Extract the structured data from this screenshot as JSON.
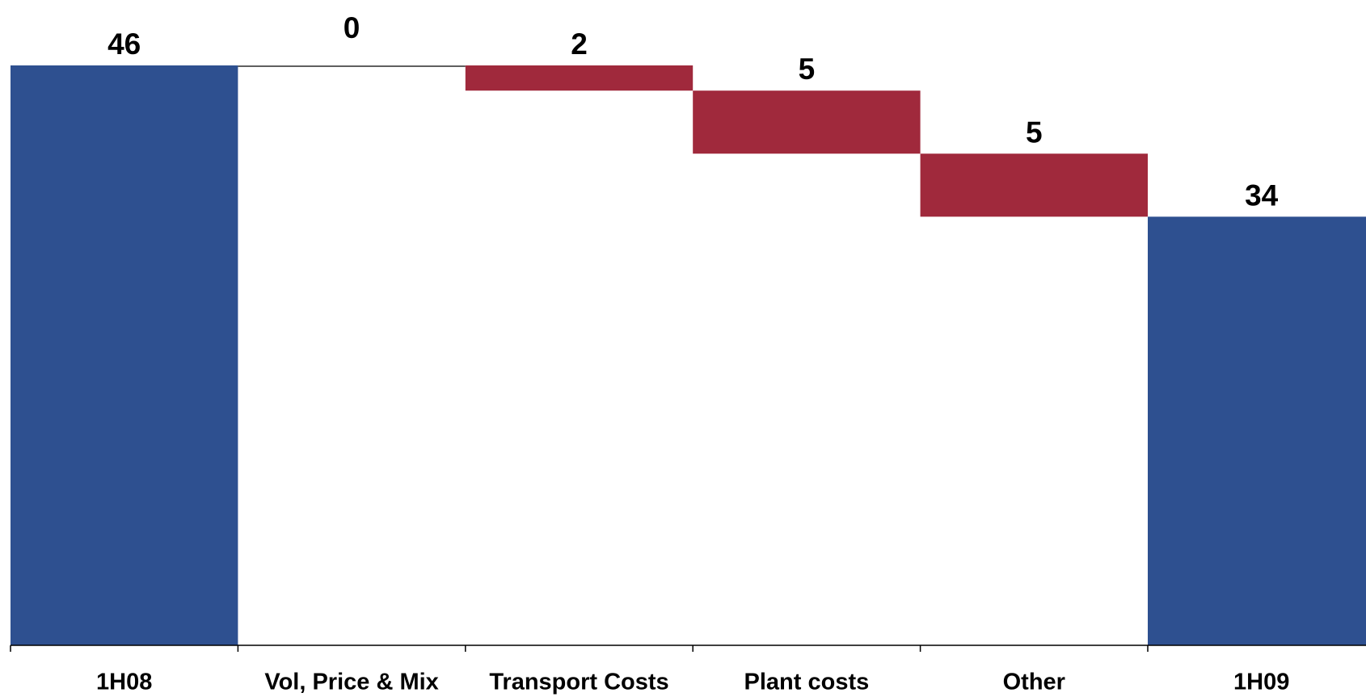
{
  "chart_data": {
    "type": "waterfall",
    "categories": [
      "1H08",
      "Vol, Price & Mix",
      "Transport Costs",
      "Plant costs",
      "Other",
      "1H09"
    ],
    "values": [
      46,
      0,
      -2,
      -5,
      -5,
      34
    ],
    "value_labels": [
      "46",
      "0",
      "2",
      "5",
      "5",
      "34"
    ],
    "total_color": "#2e5090",
    "decrease_color": "#a0293c",
    "ylim": [
      0,
      46
    ]
  }
}
